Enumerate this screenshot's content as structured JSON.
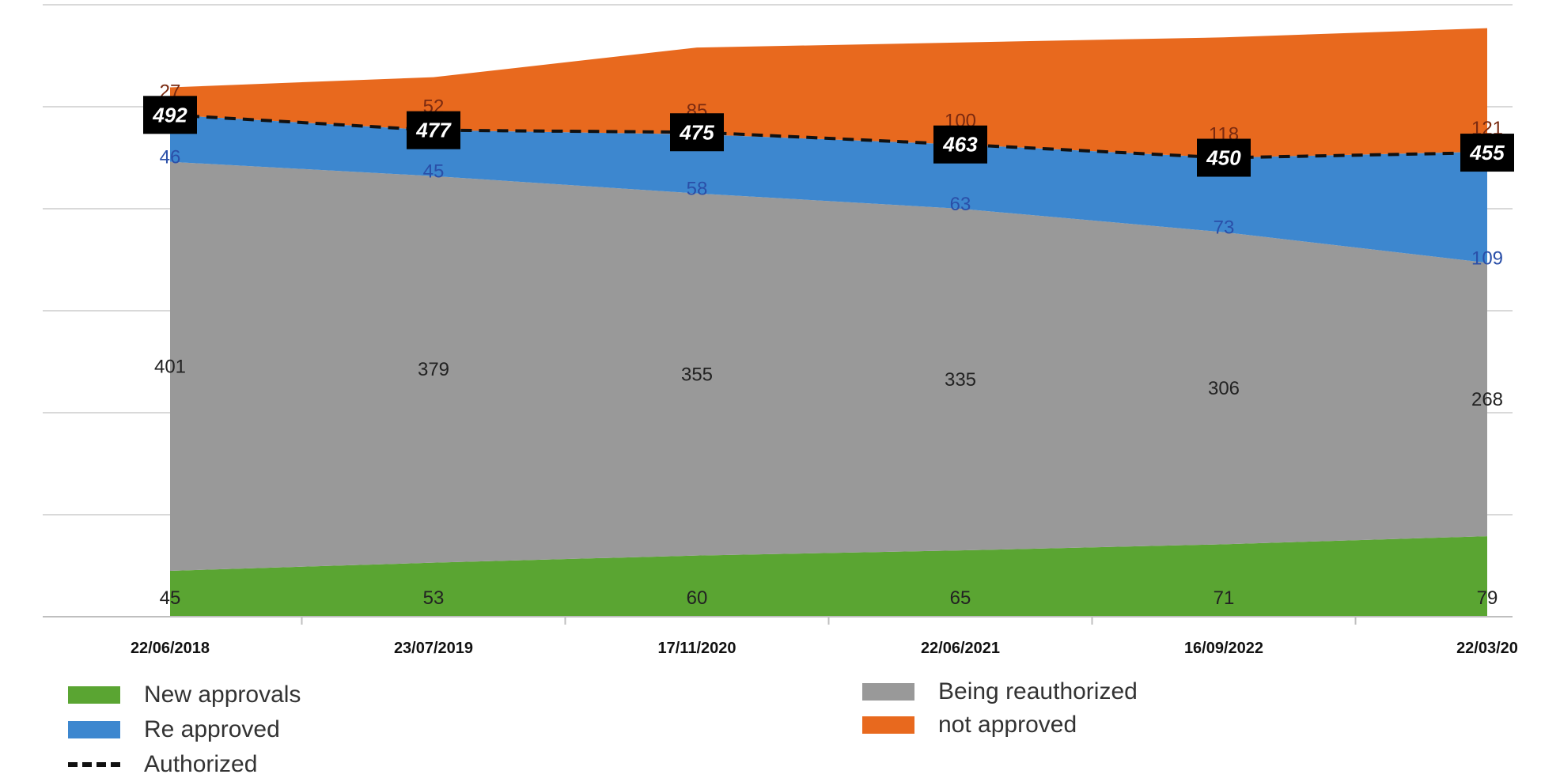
{
  "chart_data": {
    "type": "area",
    "stacked": true,
    "categories": [
      "22/06/2018",
      "23/07/2019",
      "17/11/2020",
      "22/06/2021",
      "16/09/2022",
      "22/03/20"
    ],
    "series": [
      {
        "name": "New approvals",
        "values": [
          45,
          53,
          60,
          65,
          71,
          79
        ],
        "color": "#5aa532"
      },
      {
        "name": "Being reauthorized",
        "values": [
          401,
          379,
          355,
          335,
          306,
          268
        ],
        "color": "#999999"
      },
      {
        "name": "Re approved",
        "values": [
          46,
          45,
          58,
          63,
          73,
          109
        ],
        "color": "#3d87cf"
      },
      {
        "name": "not approved",
        "values": [
          27,
          52,
          85,
          100,
          118,
          121
        ],
        "color": "#e8691e"
      }
    ],
    "line": {
      "name": "Authorized",
      "values": [
        492,
        477,
        475,
        463,
        450,
        455
      ],
      "style": "dashed",
      "color": "#111111"
    },
    "ylim": [
      0,
      600
    ],
    "grid": true,
    "legend_position": "bottom",
    "xlabel": "",
    "ylabel": ""
  }
}
